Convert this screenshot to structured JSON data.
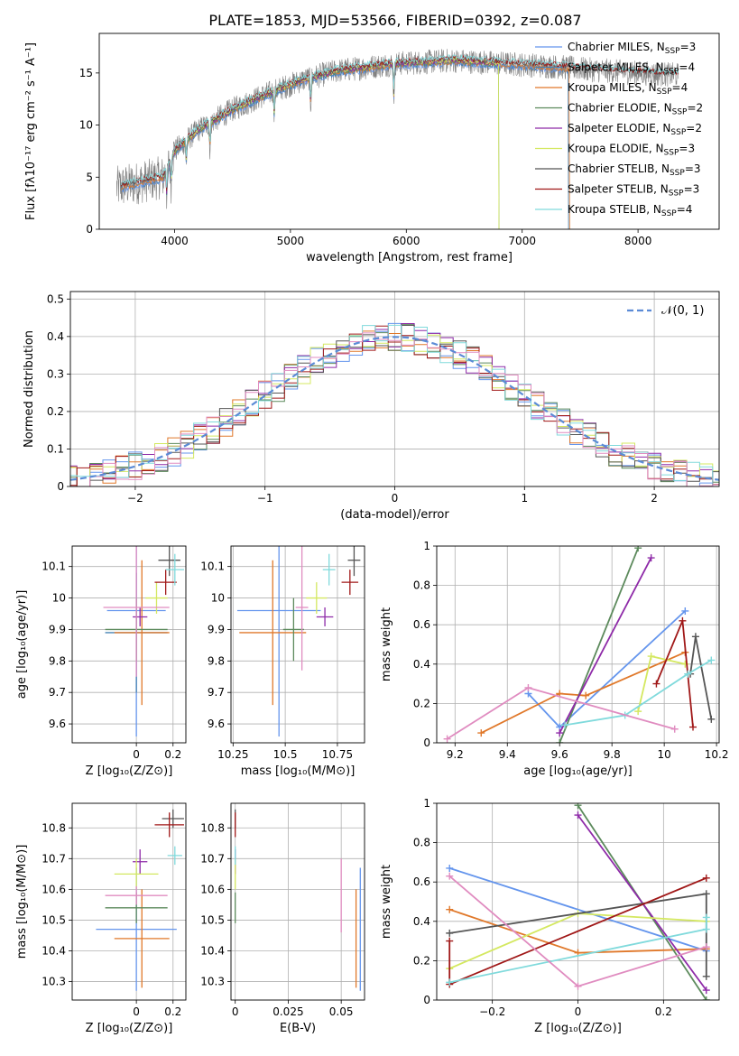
{
  "figure_title": "PLATE=1853, MJD=53566, FIBERID=0392, z=0.087",
  "colors": {
    "chabrier_miles": "#6495ed",
    "salpeter_miles": "#4682b4",
    "kroupa_miles": "#e0782a",
    "chabrier_elodie": "#5c8a5c",
    "salpeter_elodie": "#8e2aa8",
    "kroupa_elodie": "#d4e860",
    "chabrier_stelib": "#555555",
    "salpeter_stelib": "#a01818",
    "kroupa_stelib": "#80dadc",
    "pink": "#e08cc0",
    "gaussian": "#5b8bd6",
    "data": "#808080"
  },
  "chart_data": [
    {
      "type": "line",
      "title": "",
      "xlabel": "wavelength [Angstrom, rest frame]",
      "ylabel": "Flux [fλ10⁻¹⁷ erg cm⁻² s⁻¹ A⁻¹]",
      "xlim": [
        3350,
        8700
      ],
      "ylim": [
        0,
        18.8
      ],
      "xticks": [
        4000,
        5000,
        6000,
        7000,
        8000
      ],
      "yticks": [
        0,
        5,
        10,
        15
      ],
      "legend_position": "top-right",
      "legend": [
        "Chabrier MILES, N_SSP=3",
        "Salpeter MILES, N_SSP=4",
        "Kroupa MILES, N_SSP=4",
        "Chabrier ELODIE, N_SSP=2",
        "Salpeter ELODIE, N_SSP=2",
        "Kroupa ELODIE, N_SSP=3",
        "Chabrier STELIB, N_SSP=3",
        "Salpeter STELIB, N_SSP=3",
        "Kroupa STELIB, N_SSP=4"
      ],
      "continuum": [
        [
          3500,
          4.0
        ],
        [
          3700,
          4.5
        ],
        [
          3900,
          5.0
        ],
        [
          4000,
          7.5
        ],
        [
          4200,
          9.5
        ],
        [
          4500,
          11.5
        ],
        [
          4800,
          13.0
        ],
        [
          5100,
          14.3
        ],
        [
          5400,
          15.2
        ],
        [
          5700,
          15.6
        ],
        [
          5900,
          15.9
        ],
        [
          6100,
          16.0
        ],
        [
          6400,
          16.2
        ],
        [
          6700,
          16.0
        ],
        [
          7000,
          15.8
        ],
        [
          7300,
          15.6
        ],
        [
          7600,
          15.3
        ],
        [
          8000,
          15.0
        ],
        [
          8350,
          14.8
        ]
      ],
      "absorption_features": [
        [
          3934,
          2.5
        ],
        [
          3969,
          2.5
        ],
        [
          4102,
          2.0
        ],
        [
          4305,
          2.5
        ],
        [
          4861,
          2.0
        ],
        [
          5175,
          2.5
        ],
        [
          5893,
          3.0
        ]
      ]
    },
    {
      "type": "area",
      "xlabel": "(data-model)/error",
      "ylabel": "Normed distribution",
      "xlim": [
        -2.5,
        2.5
      ],
      "ylim": [
        0,
        0.52
      ],
      "xticks": [
        -2,
        -1,
        0,
        1,
        2
      ],
      "yticks": [
        0.0,
        0.1,
        0.2,
        0.3,
        0.4,
        0.5
      ],
      "legend": [
        "𝒩(0, 1)"
      ],
      "legend_position": "top-right",
      "gaussian": {
        "mu": 0,
        "sigma": 1
      }
    },
    {
      "type": "scatter",
      "xlabel": "Z [log₁₀(Z/Z⊙)]",
      "ylabel": "age  [log₁₀(age/yr)]",
      "xlim": [
        -0.35,
        0.27
      ],
      "ylim": [
        9.54,
        10.165
      ],
      "xticks": [
        0.0,
        0.2
      ],
      "yticks": [
        9.6,
        9.7,
        9.8,
        9.9,
        10.0,
        10.1
      ],
      "points": [
        {
          "x": 0.0,
          "y": 9.96,
          "xerr": 0.16,
          "yerr": 0.4,
          "c": "chabrier_miles"
        },
        {
          "x": 0.0,
          "y": 9.89,
          "xerr": 0.17,
          "yerr": 0.19,
          "c": "salpeter_miles"
        },
        {
          "x": 0.03,
          "y": 9.89,
          "xerr": 0.15,
          "yerr": 0.23,
          "c": "kroupa_miles"
        },
        {
          "x": 0.0,
          "y": 9.9,
          "xerr": 0.17,
          "yerr": 0.1,
          "c": "chabrier_elodie"
        },
        {
          "x": 0.02,
          "y": 9.94,
          "xerr": 0.04,
          "yerr": 0.03,
          "c": "salpeter_elodie"
        },
        {
          "x": 0.11,
          "y": 10.0,
          "xerr": 0.06,
          "yerr": 0.05,
          "c": "kroupa_elodie"
        },
        {
          "x": 0.18,
          "y": 10.12,
          "xerr": 0.06,
          "yerr": 0.05,
          "c": "chabrier_stelib"
        },
        {
          "x": 0.16,
          "y": 10.05,
          "xerr": 0.06,
          "yerr": 0.04,
          "c": "salpeter_stelib"
        },
        {
          "x": 0.21,
          "y": 10.09,
          "xerr": 0.05,
          "yerr": 0.05,
          "c": "kroupa_stelib"
        },
        {
          "x": 0.0,
          "y": 9.97,
          "xerr": 0.18,
          "yerr": 0.22,
          "c": "pink"
        }
      ]
    },
    {
      "type": "scatter",
      "xlabel": "mass [log₁₀(M/M⊙)]",
      "ylabel": "",
      "xlim": [
        10.24,
        10.88
      ],
      "ylim": [
        9.54,
        10.165
      ],
      "xticks": [
        10.25,
        10.5,
        10.75
      ],
      "yticks": [
        9.6,
        9.7,
        9.8,
        9.9,
        10.0,
        10.1
      ],
      "points": [
        {
          "x": 10.47,
          "y": 9.96,
          "xerr": 0.2,
          "yerr": 0.4,
          "c": "chabrier_miles"
        },
        {
          "x": 10.44,
          "y": 9.89,
          "xerr": 0.16,
          "yerr": 0.23,
          "c": "kroupa_miles"
        },
        {
          "x": 10.54,
          "y": 9.9,
          "xerr": 0.05,
          "yerr": 0.1,
          "c": "chabrier_elodie"
        },
        {
          "x": 10.69,
          "y": 9.94,
          "xerr": 0.04,
          "yerr": 0.03,
          "c": "salpeter_elodie"
        },
        {
          "x": 10.65,
          "y": 10.0,
          "xerr": 0.05,
          "yerr": 0.05,
          "c": "kroupa_elodie"
        },
        {
          "x": 10.83,
          "y": 10.12,
          "xerr": 0.03,
          "yerr": 0.05,
          "c": "chabrier_stelib"
        },
        {
          "x": 10.81,
          "y": 10.05,
          "xerr": 0.04,
          "yerr": 0.04,
          "c": "salpeter_stelib"
        },
        {
          "x": 10.71,
          "y": 10.09,
          "xerr": 0.03,
          "yerr": 0.05,
          "c": "kroupa_stelib"
        },
        {
          "x": 10.58,
          "y": 9.97,
          "xerr": 0.03,
          "yerr": 0.2,
          "c": "pink"
        }
      ]
    },
    {
      "type": "line",
      "xlabel": "age  [log₁₀(age/yr)]",
      "ylabel": "mass weight",
      "xlim": [
        9.13,
        10.21
      ],
      "ylim": [
        0,
        1
      ],
      "xticks": [
        9.2,
        9.4,
        9.6,
        9.8,
        10.0,
        10.2
      ],
      "yticks": [
        0.0,
        0.2,
        0.4,
        0.6,
        0.8,
        1.0
      ],
      "series": [
        {
          "c": "chabrier_miles",
          "x": [
            9.48,
            9.6,
            10.08
          ],
          "y": [
            0.25,
            0.08,
            0.67
          ]
        },
        {
          "c": "kroupa_miles",
          "x": [
            9.3,
            9.6,
            9.7,
            10.08
          ],
          "y": [
            0.05,
            0.25,
            0.24,
            0.46
          ]
        },
        {
          "c": "chabrier_elodie",
          "x": [
            9.6,
            9.9
          ],
          "y": [
            0.0,
            0.99
          ]
        },
        {
          "c": "salpeter_elodie",
          "x": [
            9.6,
            9.95
          ],
          "y": [
            0.05,
            0.94
          ]
        },
        {
          "c": "kroupa_elodie",
          "x": [
            9.9,
            9.95,
            10.08
          ],
          "y": [
            0.16,
            0.44,
            0.4
          ]
        },
        {
          "c": "chabrier_stelib",
          "x": [
            10.1,
            10.12,
            10.18
          ],
          "y": [
            0.35,
            0.54,
            0.12
          ]
        },
        {
          "c": "salpeter_stelib",
          "x": [
            9.97,
            10.07,
            10.11
          ],
          "y": [
            0.3,
            0.62,
            0.08
          ]
        },
        {
          "c": "kroupa_stelib",
          "x": [
            9.62,
            9.85,
            10.09,
            10.18
          ],
          "y": [
            0.09,
            0.14,
            0.35,
            0.42
          ]
        },
        {
          "c": "pink",
          "x": [
            9.17,
            9.48,
            10.04
          ],
          "y": [
            0.02,
            0.28,
            0.07
          ]
        }
      ]
    },
    {
      "type": "scatter",
      "xlabel": "Z [log₁₀(Z/Z⊙)]",
      "ylabel": "mass [log₁₀(M/M⊙)]",
      "xlim": [
        -0.35,
        0.27
      ],
      "ylim": [
        10.24,
        10.88
      ],
      "xticks": [
        0.0,
        0.2
      ],
      "yticks": [
        10.3,
        10.4,
        10.5,
        10.6,
        10.7,
        10.8
      ],
      "points": [
        {
          "x": 0.0,
          "y": 10.47,
          "xerr": 0.22,
          "yerr": 0.2,
          "c": "chabrier_miles"
        },
        {
          "x": 0.03,
          "y": 10.44,
          "xerr": 0.15,
          "yerr": 0.16,
          "c": "kroupa_miles"
        },
        {
          "x": 0.0,
          "y": 10.54,
          "xerr": 0.17,
          "yerr": 0.05,
          "c": "chabrier_elodie"
        },
        {
          "x": 0.02,
          "y": 10.69,
          "xerr": 0.04,
          "yerr": 0.04,
          "c": "salpeter_elodie"
        },
        {
          "x": 0.0,
          "y": 10.65,
          "xerr": 0.12,
          "yerr": 0.05,
          "c": "kroupa_elodie"
        },
        {
          "x": 0.2,
          "y": 10.83,
          "xerr": 0.06,
          "yerr": 0.03,
          "c": "chabrier_stelib"
        },
        {
          "x": 0.18,
          "y": 10.81,
          "xerr": 0.08,
          "yerr": 0.04,
          "c": "salpeter_stelib"
        },
        {
          "x": 0.21,
          "y": 10.71,
          "xerr": 0.04,
          "yerr": 0.03,
          "c": "kroupa_stelib"
        },
        {
          "x": 0.0,
          "y": 10.58,
          "xerr": 0.17,
          "yerr": 0.03,
          "c": "pink"
        }
      ]
    },
    {
      "type": "scatter",
      "xlabel": "E(B-V)",
      "ylabel": "",
      "xlim": [
        -0.002,
        0.061
      ],
      "ylim": [
        10.24,
        10.88
      ],
      "xticks": [
        0.0,
        0.025,
        0.05
      ],
      "yticks": [
        10.3,
        10.4,
        10.5,
        10.6,
        10.7,
        10.8
      ],
      "points": [
        {
          "x": 0.059,
          "y": 10.47,
          "xerr": 0,
          "yerr": 0.2,
          "c": "chabrier_miles"
        },
        {
          "x": 0.057,
          "y": 10.44,
          "xerr": 0,
          "yerr": 0.16,
          "c": "kroupa_miles"
        },
        {
          "x": 0.0,
          "y": 10.54,
          "xerr": 0,
          "yerr": 0.05,
          "c": "chabrier_elodie"
        },
        {
          "x": 0.0,
          "y": 10.69,
          "xerr": 0,
          "yerr": 0.04,
          "c": "salpeter_elodie"
        },
        {
          "x": 0.0,
          "y": 10.65,
          "xerr": 0,
          "yerr": 0.05,
          "c": "kroupa_elodie"
        },
        {
          "x": 0.0,
          "y": 10.83,
          "xerr": 0,
          "yerr": 0.03,
          "c": "chabrier_stelib"
        },
        {
          "x": 0.0,
          "y": 10.81,
          "xerr": 0,
          "yerr": 0.04,
          "c": "salpeter_stelib"
        },
        {
          "x": 0.0,
          "y": 10.71,
          "xerr": 0,
          "yerr": 0.03,
          "c": "kroupa_stelib"
        },
        {
          "x": 0.05,
          "y": 10.58,
          "xerr": 0,
          "yerr": 0.12,
          "c": "pink"
        }
      ]
    },
    {
      "type": "line",
      "xlabel": "Z [log₁₀(Z/Z⊙)]",
      "ylabel": "mass weight",
      "xlim": [
        -0.33,
        0.33
      ],
      "ylim": [
        0,
        1
      ],
      "xticks": [
        -0.2,
        0.0,
        0.2
      ],
      "yticks": [
        0.0,
        0.2,
        0.4,
        0.6,
        0.8,
        1.0
      ],
      "series": [
        {
          "c": "chabrier_miles",
          "x": [
            -0.3,
            0.3
          ],
          "y": [
            0.67,
            0.25
          ]
        },
        {
          "c": "kroupa_miles",
          "x": [
            -0.3,
            0.0,
            0.3
          ],
          "y": [
            0.46,
            0.24,
            0.26
          ]
        },
        {
          "c": "chabrier_elodie",
          "x": [
            0.0,
            0.3
          ],
          "y": [
            0.99,
            0.0
          ]
        },
        {
          "c": "salpeter_elodie",
          "x": [
            0.0,
            0.3
          ],
          "y": [
            0.94,
            0.05
          ]
        },
        {
          "c": "kroupa_elodie",
          "x": [
            -0.3,
            0.0,
            0.3
          ],
          "y": [
            0.16,
            0.44,
            0.4
          ]
        },
        {
          "c": "chabrier_stelib",
          "x": [
            -0.3,
            0.3,
            0.3
          ],
          "y": [
            0.34,
            0.54,
            0.12
          ]
        },
        {
          "c": "salpeter_stelib",
          "x": [
            -0.3,
            -0.3,
            0.3
          ],
          "y": [
            0.3,
            0.08,
            0.62
          ]
        },
        {
          "c": "kroupa_stelib",
          "x": [
            -0.3,
            0.3,
            0.3
          ],
          "y": [
            0.09,
            0.36,
            0.42
          ]
        },
        {
          "c": "pink",
          "x": [
            -0.3,
            0.0,
            0.3
          ],
          "y": [
            0.63,
            0.07,
            0.27
          ]
        }
      ]
    }
  ]
}
